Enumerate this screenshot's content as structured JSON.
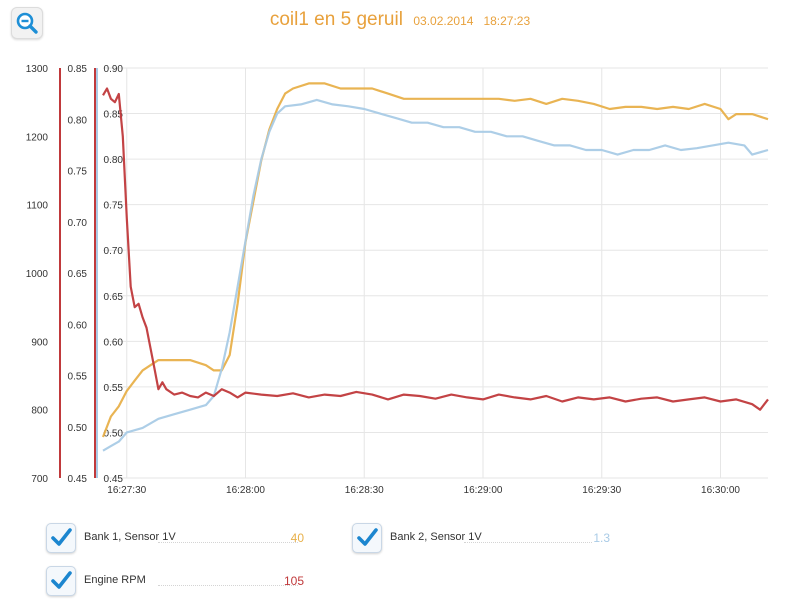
{
  "header": {
    "title": "coil1 en 5 geruil",
    "date": "03.02.2014",
    "time": "18:27:23"
  },
  "toolbar": {
    "zoom_icon": "magnifier-minus-icon"
  },
  "legend": [
    {
      "label": "Bank 1, Sensor 1V",
      "value": "40",
      "color": "#e8b04a",
      "checked": true
    },
    {
      "label": "Bank 2, Sensor 1V",
      "value": "1.3",
      "color": "#a9cbe6",
      "checked": true
    },
    {
      "label": "Engine RPM",
      "value": "105",
      "color": "#c0393b",
      "checked": true
    }
  ],
  "chart_data": {
    "type": "line",
    "x_range": [
      "16:27:24",
      "16:30:12"
    ],
    "x_ticks": [
      "16:27:30",
      "16:28:00",
      "16:28:30",
      "16:29:00",
      "16:29:30",
      "16:30:00"
    ],
    "grid": {
      "vertical": true,
      "horizontal": true
    },
    "axes": [
      {
        "id": "rpm",
        "color": "#c0393b",
        "range": [
          700,
          1300
        ],
        "ticks": [
          "700",
          "800",
          "900",
          "1000",
          "1100",
          "1200",
          "1300"
        ]
      },
      {
        "id": "bank1",
        "color": "#c0393b",
        "range": [
          0.45,
          0.85
        ],
        "ticks": [
          "0.45",
          "0.50",
          "0.55",
          "0.60",
          "0.65",
          "0.70",
          "0.75",
          "0.80",
          "0.85"
        ]
      },
      {
        "id": "bank2",
        "color": "#a9cbe6",
        "range": [
          0.45,
          0.9
        ],
        "ticks": [
          "0.45",
          "0.50",
          "0.55",
          "0.60",
          "0.65",
          "0.70",
          "0.75",
          "0.80",
          "0.85",
          "0.90"
        ]
      }
    ],
    "series": [
      {
        "name": "Bank 1, Sensor 1V",
        "axis": "bank1",
        "color": "#e8b04a",
        "points": [
          [
            "16:27:24",
            0.49
          ],
          [
            "16:27:26",
            0.51
          ],
          [
            "16:27:28",
            0.52
          ],
          [
            "16:27:30",
            0.535
          ],
          [
            "16:27:32",
            0.545
          ],
          [
            "16:27:34",
            0.555
          ],
          [
            "16:27:36",
            0.56
          ],
          [
            "16:27:38",
            0.565
          ],
          [
            "16:27:42",
            0.565
          ],
          [
            "16:27:46",
            0.565
          ],
          [
            "16:27:50",
            0.56
          ],
          [
            "16:27:52",
            0.555
          ],
          [
            "16:27:54",
            0.555
          ],
          [
            "16:27:56",
            0.57
          ],
          [
            "16:27:58",
            0.62
          ],
          [
            "16:28:00",
            0.68
          ],
          [
            "16:28:02",
            0.72
          ],
          [
            "16:28:04",
            0.76
          ],
          [
            "16:28:06",
            0.79
          ],
          [
            "16:28:08",
            0.81
          ],
          [
            "16:28:10",
            0.825
          ],
          [
            "16:28:12",
            0.83
          ],
          [
            "16:28:16",
            0.835
          ],
          [
            "16:28:20",
            0.835
          ],
          [
            "16:28:24",
            0.83
          ],
          [
            "16:28:28",
            0.83
          ],
          [
            "16:28:32",
            0.83
          ],
          [
            "16:28:36",
            0.825
          ],
          [
            "16:28:40",
            0.82
          ],
          [
            "16:28:44",
            0.82
          ],
          [
            "16:28:48",
            0.82
          ],
          [
            "16:28:52",
            0.82
          ],
          [
            "16:28:56",
            0.82
          ],
          [
            "16:29:00",
            0.82
          ],
          [
            "16:29:04",
            0.82
          ],
          [
            "16:29:08",
            0.818
          ],
          [
            "16:29:12",
            0.82
          ],
          [
            "16:29:16",
            0.815
          ],
          [
            "16:29:20",
            0.82
          ],
          [
            "16:29:24",
            0.818
          ],
          [
            "16:29:28",
            0.815
          ],
          [
            "16:29:32",
            0.81
          ],
          [
            "16:29:36",
            0.812
          ],
          [
            "16:29:40",
            0.812
          ],
          [
            "16:29:44",
            0.81
          ],
          [
            "16:29:48",
            0.812
          ],
          [
            "16:29:52",
            0.81
          ],
          [
            "16:29:56",
            0.815
          ],
          [
            "16:30:00",
            0.81
          ],
          [
            "16:30:02",
            0.8
          ],
          [
            "16:30:04",
            0.805
          ],
          [
            "16:30:08",
            0.805
          ],
          [
            "16:30:12",
            0.8
          ]
        ]
      },
      {
        "name": "Bank 2, Sensor 1V",
        "axis": "bank2",
        "color": "#a9cbe6",
        "points": [
          [
            "16:27:24",
            0.48
          ],
          [
            "16:27:26",
            0.485
          ],
          [
            "16:27:28",
            0.49
          ],
          [
            "16:27:30",
            0.5
          ],
          [
            "16:27:34",
            0.505
          ],
          [
            "16:27:38",
            0.515
          ],
          [
            "16:27:42",
            0.52
          ],
          [
            "16:27:46",
            0.525
          ],
          [
            "16:27:50",
            0.53
          ],
          [
            "16:27:52",
            0.54
          ],
          [
            "16:27:54",
            0.57
          ],
          [
            "16:27:56",
            0.61
          ],
          [
            "16:27:58",
            0.66
          ],
          [
            "16:28:00",
            0.71
          ],
          [
            "16:28:02",
            0.76
          ],
          [
            "16:28:04",
            0.8
          ],
          [
            "16:28:06",
            0.83
          ],
          [
            "16:28:08",
            0.85
          ],
          [
            "16:28:10",
            0.858
          ],
          [
            "16:28:14",
            0.86
          ],
          [
            "16:28:18",
            0.865
          ],
          [
            "16:28:22",
            0.86
          ],
          [
            "16:28:26",
            0.858
          ],
          [
            "16:28:30",
            0.855
          ],
          [
            "16:28:34",
            0.85
          ],
          [
            "16:28:38",
            0.845
          ],
          [
            "16:28:42",
            0.84
          ],
          [
            "16:28:46",
            0.84
          ],
          [
            "16:28:50",
            0.835
          ],
          [
            "16:28:54",
            0.835
          ],
          [
            "16:28:58",
            0.83
          ],
          [
            "16:29:02",
            0.83
          ],
          [
            "16:29:06",
            0.825
          ],
          [
            "16:29:10",
            0.825
          ],
          [
            "16:29:14",
            0.82
          ],
          [
            "16:29:18",
            0.815
          ],
          [
            "16:29:22",
            0.815
          ],
          [
            "16:29:26",
            0.81
          ],
          [
            "16:29:30",
            0.81
          ],
          [
            "16:29:34",
            0.805
          ],
          [
            "16:29:38",
            0.81
          ],
          [
            "16:29:42",
            0.81
          ],
          [
            "16:29:46",
            0.815
          ],
          [
            "16:29:50",
            0.81
          ],
          [
            "16:29:54",
            0.812
          ],
          [
            "16:29:58",
            0.815
          ],
          [
            "16:30:02",
            0.818
          ],
          [
            "16:30:06",
            0.815
          ],
          [
            "16:30:08",
            0.805
          ],
          [
            "16:30:12",
            0.81
          ]
        ]
      },
      {
        "name": "Engine RPM",
        "axis": "rpm",
        "color": "#c0393b",
        "points": [
          [
            "16:27:24",
            1260
          ],
          [
            "16:27:25",
            1270
          ],
          [
            "16:27:26",
            1255
          ],
          [
            "16:27:27",
            1250
          ],
          [
            "16:27:28",
            1262
          ],
          [
            "16:27:29",
            1200
          ],
          [
            "16:27:30",
            1080
          ],
          [
            "16:27:31",
            980
          ],
          [
            "16:27:32",
            950
          ],
          [
            "16:27:33",
            955
          ],
          [
            "16:27:34",
            935
          ],
          [
            "16:27:35",
            920
          ],
          [
            "16:27:36",
            890
          ],
          [
            "16:27:37",
            860
          ],
          [
            "16:27:38",
            830
          ],
          [
            "16:27:39",
            840
          ],
          [
            "16:27:40",
            830
          ],
          [
            "16:27:42",
            822
          ],
          [
            "16:27:44",
            825
          ],
          [
            "16:27:46",
            820
          ],
          [
            "16:27:48",
            818
          ],
          [
            "16:27:50",
            825
          ],
          [
            "16:27:52",
            820
          ],
          [
            "16:27:54",
            830
          ],
          [
            "16:27:56",
            825
          ],
          [
            "16:27:58",
            818
          ],
          [
            "16:28:00",
            825
          ],
          [
            "16:28:04",
            822
          ],
          [
            "16:28:08",
            820
          ],
          [
            "16:28:12",
            824
          ],
          [
            "16:28:16",
            818
          ],
          [
            "16:28:20",
            822
          ],
          [
            "16:28:24",
            820
          ],
          [
            "16:28:28",
            826
          ],
          [
            "16:28:32",
            822
          ],
          [
            "16:28:36",
            815
          ],
          [
            "16:28:40",
            822
          ],
          [
            "16:28:44",
            820
          ],
          [
            "16:28:48",
            816
          ],
          [
            "16:28:52",
            822
          ],
          [
            "16:28:56",
            818
          ],
          [
            "16:29:00",
            815
          ],
          [
            "16:29:04",
            822
          ],
          [
            "16:29:08",
            818
          ],
          [
            "16:29:12",
            815
          ],
          [
            "16:29:16",
            820
          ],
          [
            "16:29:20",
            812
          ],
          [
            "16:29:24",
            818
          ],
          [
            "16:29:28",
            815
          ],
          [
            "16:29:32",
            818
          ],
          [
            "16:29:36",
            812
          ],
          [
            "16:29:40",
            816
          ],
          [
            "16:29:44",
            818
          ],
          [
            "16:29:48",
            812
          ],
          [
            "16:29:52",
            815
          ],
          [
            "16:29:56",
            818
          ],
          [
            "16:30:00",
            812
          ],
          [
            "16:30:04",
            815
          ],
          [
            "16:30:08",
            808
          ],
          [
            "16:30:10",
            800
          ],
          [
            "16:30:12",
            815
          ]
        ]
      }
    ]
  }
}
